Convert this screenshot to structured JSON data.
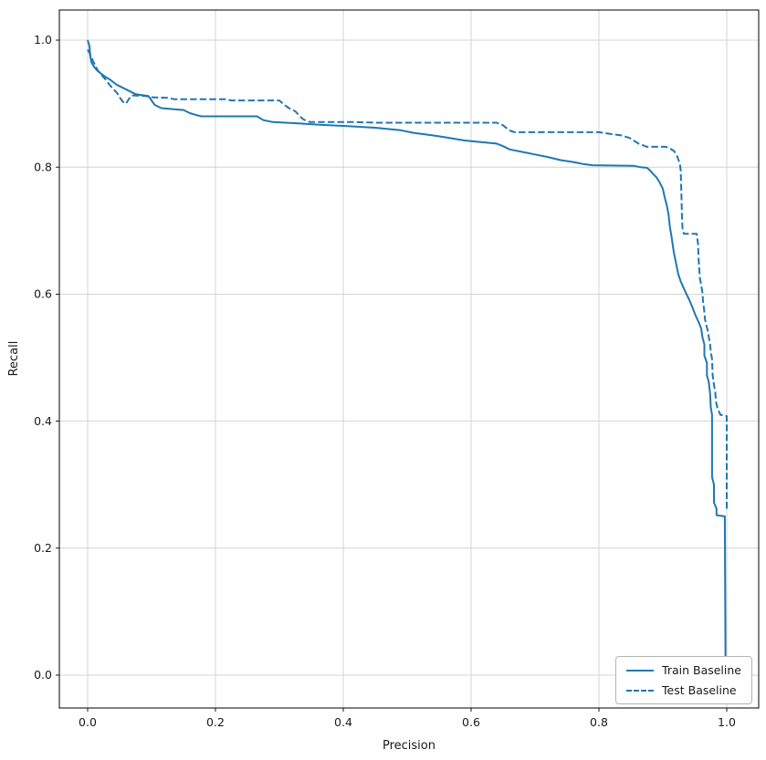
{
  "figure": {
    "background": "#ffffff"
  },
  "chart_data": {
    "type": "line",
    "title": "",
    "xlabel": "Precision",
    "ylabel": "Recall",
    "xlim": [
      -0.045,
      1.05
    ],
    "ylim": [
      -0.045,
      1.05
    ],
    "grid": true,
    "grid_color": "#c9c9c9",
    "legend_position": "lower right",
    "xticks": [
      0.0,
      0.2,
      0.4,
      0.6,
      0.8,
      1.0
    ],
    "yticks": [
      0.0,
      0.2,
      0.4,
      0.6,
      0.8,
      1.0
    ],
    "xtick_labels": [
      "0.0",
      "0.2",
      "0.4",
      "0.6",
      "0.8",
      "1.0"
    ],
    "ytick_labels": [
      "0.0",
      "0.2",
      "0.4",
      "0.6",
      "0.8",
      "1.0"
    ],
    "series": [
      {
        "name": "Train Baseline",
        "style": "solid",
        "color": "#1f77b4",
        "points": [
          [
            0.0,
            1.0
          ],
          [
            0.003,
            0.99
          ],
          [
            0.004,
            0.975
          ],
          [
            0.006,
            0.965
          ],
          [
            0.01,
            0.958
          ],
          [
            0.015,
            0.952
          ],
          [
            0.02,
            0.948
          ],
          [
            0.028,
            0.942
          ],
          [
            0.035,
            0.938
          ],
          [
            0.045,
            0.93
          ],
          [
            0.055,
            0.925
          ],
          [
            0.065,
            0.92
          ],
          [
            0.075,
            0.915
          ],
          [
            0.095,
            0.912
          ],
          [
            0.105,
            0.898
          ],
          [
            0.115,
            0.893
          ],
          [
            0.15,
            0.89
          ],
          [
            0.16,
            0.885
          ],
          [
            0.17,
            0.882
          ],
          [
            0.178,
            0.88
          ],
          [
            0.265,
            0.88
          ],
          [
            0.275,
            0.874
          ],
          [
            0.29,
            0.871
          ],
          [
            0.33,
            0.869
          ],
          [
            0.36,
            0.867
          ],
          [
            0.4,
            0.865
          ],
          [
            0.45,
            0.862
          ],
          [
            0.49,
            0.858
          ],
          [
            0.51,
            0.854
          ],
          [
            0.54,
            0.85
          ],
          [
            0.56,
            0.847
          ],
          [
            0.59,
            0.842
          ],
          [
            0.61,
            0.84
          ],
          [
            0.64,
            0.837
          ],
          [
            0.65,
            0.833
          ],
          [
            0.66,
            0.828
          ],
          [
            0.68,
            0.824
          ],
          [
            0.7,
            0.82
          ],
          [
            0.72,
            0.816
          ],
          [
            0.74,
            0.811
          ],
          [
            0.76,
            0.808
          ],
          [
            0.775,
            0.805
          ],
          [
            0.79,
            0.803
          ],
          [
            0.855,
            0.802
          ],
          [
            0.865,
            0.8
          ],
          [
            0.875,
            0.799
          ],
          [
            0.88,
            0.795
          ],
          [
            0.885,
            0.789
          ],
          [
            0.89,
            0.784
          ],
          [
            0.895,
            0.776
          ],
          [
            0.9,
            0.766
          ],
          [
            0.903,
            0.752
          ],
          [
            0.906,
            0.741
          ],
          [
            0.909,
            0.725
          ],
          [
            0.911,
            0.706
          ],
          [
            0.914,
            0.688
          ],
          [
            0.917,
            0.667
          ],
          [
            0.92,
            0.652
          ],
          [
            0.924,
            0.632
          ],
          [
            0.928,
            0.62
          ],
          [
            0.932,
            0.611
          ],
          [
            0.936,
            0.602
          ],
          [
            0.941,
            0.592
          ],
          [
            0.946,
            0.58
          ],
          [
            0.951,
            0.567
          ],
          [
            0.956,
            0.556
          ],
          [
            0.96,
            0.546
          ],
          [
            0.962,
            0.532
          ],
          [
            0.965,
            0.521
          ],
          [
            0.965,
            0.503
          ],
          [
            0.969,
            0.492
          ],
          [
            0.969,
            0.472
          ],
          [
            0.972,
            0.461
          ],
          [
            0.974,
            0.443
          ],
          [
            0.975,
            0.422
          ],
          [
            0.977,
            0.41
          ],
          [
            0.977,
            0.312
          ],
          [
            0.98,
            0.3
          ],
          [
            0.98,
            0.272
          ],
          [
            0.984,
            0.262
          ],
          [
            0.984,
            0.252
          ],
          [
            0.99,
            0.251
          ],
          [
            0.997,
            0.25
          ],
          [
            0.998,
            0.03
          ]
        ]
      },
      {
        "name": "Test Baseline",
        "style": "dashed",
        "color": "#1f77b4",
        "points": [
          [
            0.0,
            0.985
          ],
          [
            0.004,
            0.978
          ],
          [
            0.008,
            0.968
          ],
          [
            0.012,
            0.96
          ],
          [
            0.016,
            0.952
          ],
          [
            0.022,
            0.945
          ],
          [
            0.028,
            0.938
          ],
          [
            0.034,
            0.93
          ],
          [
            0.04,
            0.923
          ],
          [
            0.046,
            0.917
          ],
          [
            0.05,
            0.91
          ],
          [
            0.055,
            0.903
          ],
          [
            0.06,
            0.9
          ],
          [
            0.065,
            0.908
          ],
          [
            0.07,
            0.913
          ],
          [
            0.09,
            0.912
          ],
          [
            0.1,
            0.91
          ],
          [
            0.125,
            0.909
          ],
          [
            0.135,
            0.907
          ],
          [
            0.215,
            0.907
          ],
          [
            0.225,
            0.905
          ],
          [
            0.3,
            0.905
          ],
          [
            0.308,
            0.898
          ],
          [
            0.315,
            0.893
          ],
          [
            0.325,
            0.888
          ],
          [
            0.332,
            0.88
          ],
          [
            0.338,
            0.875
          ],
          [
            0.348,
            0.871
          ],
          [
            0.42,
            0.871
          ],
          [
            0.45,
            0.87
          ],
          [
            0.64,
            0.87
          ],
          [
            0.65,
            0.866
          ],
          [
            0.656,
            0.861
          ],
          [
            0.662,
            0.857
          ],
          [
            0.668,
            0.855
          ],
          [
            0.8,
            0.855
          ],
          [
            0.82,
            0.852
          ],
          [
            0.835,
            0.85
          ],
          [
            0.848,
            0.846
          ],
          [
            0.856,
            0.841
          ],
          [
            0.862,
            0.837
          ],
          [
            0.87,
            0.834
          ],
          [
            0.875,
            0.832
          ],
          [
            0.905,
            0.832
          ],
          [
            0.912,
            0.829
          ],
          [
            0.918,
            0.825
          ],
          [
            0.922,
            0.818
          ],
          [
            0.925,
            0.81
          ],
          [
            0.927,
            0.803
          ],
          [
            0.928,
            0.795
          ],
          [
            0.929,
            0.76
          ],
          [
            0.93,
            0.72
          ],
          [
            0.931,
            0.7
          ],
          [
            0.933,
            0.695
          ],
          [
            0.953,
            0.695
          ],
          [
            0.955,
            0.68
          ],
          [
            0.956,
            0.655
          ],
          [
            0.957,
            0.64
          ],
          [
            0.958,
            0.625
          ],
          [
            0.96,
            0.615
          ],
          [
            0.962,
            0.602
          ],
          [
            0.963,
            0.588
          ],
          [
            0.965,
            0.572
          ],
          [
            0.966,
            0.56
          ],
          [
            0.968,
            0.551
          ],
          [
            0.97,
            0.544
          ],
          [
            0.972,
            0.532
          ],
          [
            0.974,
            0.521
          ],
          [
            0.975,
            0.509
          ],
          [
            0.977,
            0.498
          ],
          [
            0.978,
            0.472
          ],
          [
            0.98,
            0.457
          ],
          [
            0.982,
            0.447
          ],
          [
            0.983,
            0.432
          ],
          [
            0.985,
            0.422
          ],
          [
            0.988,
            0.415
          ],
          [
            0.99,
            0.41
          ],
          [
            1.0,
            0.408
          ],
          [
            1.0,
            0.262
          ]
        ]
      }
    ]
  }
}
